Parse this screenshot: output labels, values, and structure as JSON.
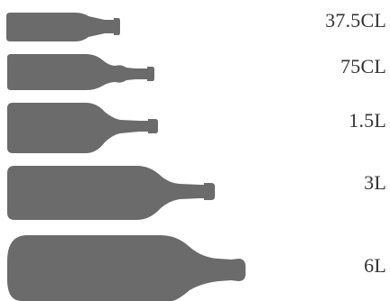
{
  "bottle_color": "#6b6b6b",
  "label_color": "#333333",
  "bottles": [
    {
      "label": "37.5CL"
    },
    {
      "label": "75CL"
    },
    {
      "label": "1.5L"
    },
    {
      "label": "3L"
    },
    {
      "label": "6L"
    }
  ]
}
